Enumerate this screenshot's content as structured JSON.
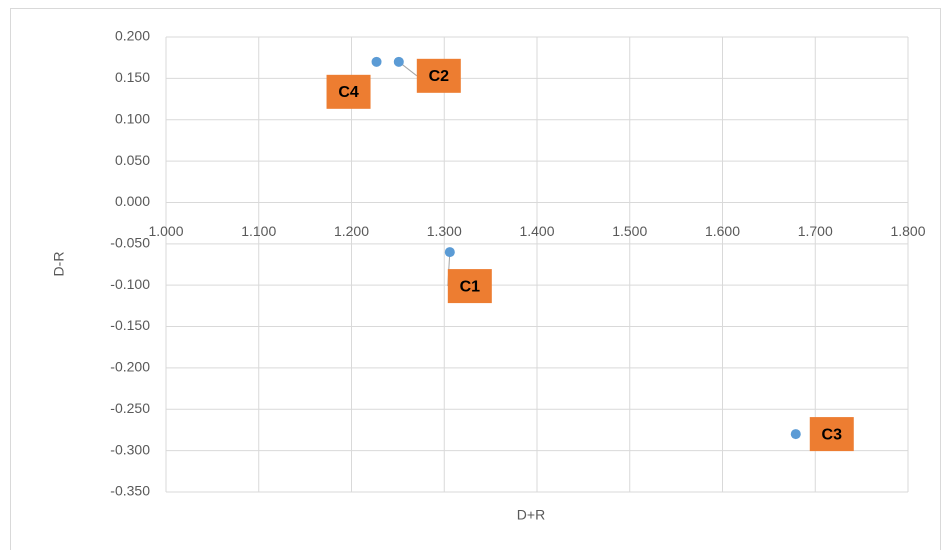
{
  "chart_data": {
    "type": "scatter",
    "x_label": "D+R",
    "y_label": "D-R",
    "x": [
      1.306,
      1.251,
      1.679,
      1.227
    ],
    "values": [
      -0.06,
      0.17,
      -0.28,
      0.17
    ],
    "labels": [
      "C1",
      "C2",
      "C3",
      "C4"
    ],
    "color": "#5b9bd5",
    "label_color": "#ed7d31",
    "xlim": [
      1.0,
      1.8
    ],
    "xticks": [
      {
        "value": 1.0,
        "label": "1.000"
      },
      {
        "value": 1.1,
        "label": "1.100"
      },
      {
        "value": 1.2,
        "label": "1.200"
      },
      {
        "value": 1.3,
        "label": "1.300"
      },
      {
        "value": 1.4,
        "label": "1.400"
      },
      {
        "value": 1.5,
        "label": "1.500"
      },
      {
        "value": 1.6,
        "label": "1.600"
      },
      {
        "value": 1.7,
        "label": "1.700"
      },
      {
        "value": 1.8,
        "label": "1.800"
      }
    ],
    "ylim": [
      -0.35,
      0.2
    ],
    "yticks": [
      {
        "value": 0.2,
        "label": "0.200"
      },
      {
        "value": 0.15,
        "label": "0.150"
      },
      {
        "value": 0.1,
        "label": "0.100"
      },
      {
        "value": 0.05,
        "label": "0.050"
      },
      {
        "value": 0,
        "label": "0.000"
      },
      {
        "value": -0.05,
        "label": "-0.050"
      },
      {
        "value": -0.1,
        "label": "-0.100"
      },
      {
        "value": -0.15,
        "label": "-0.150"
      },
      {
        "value": -0.2,
        "label": "-0.200"
      },
      {
        "value": -0.25,
        "label": "-0.250"
      },
      {
        "value": -0.3,
        "label": "-0.300"
      },
      {
        "value": -0.35,
        "label": "-0.350"
      }
    ],
    "grid": true
  }
}
